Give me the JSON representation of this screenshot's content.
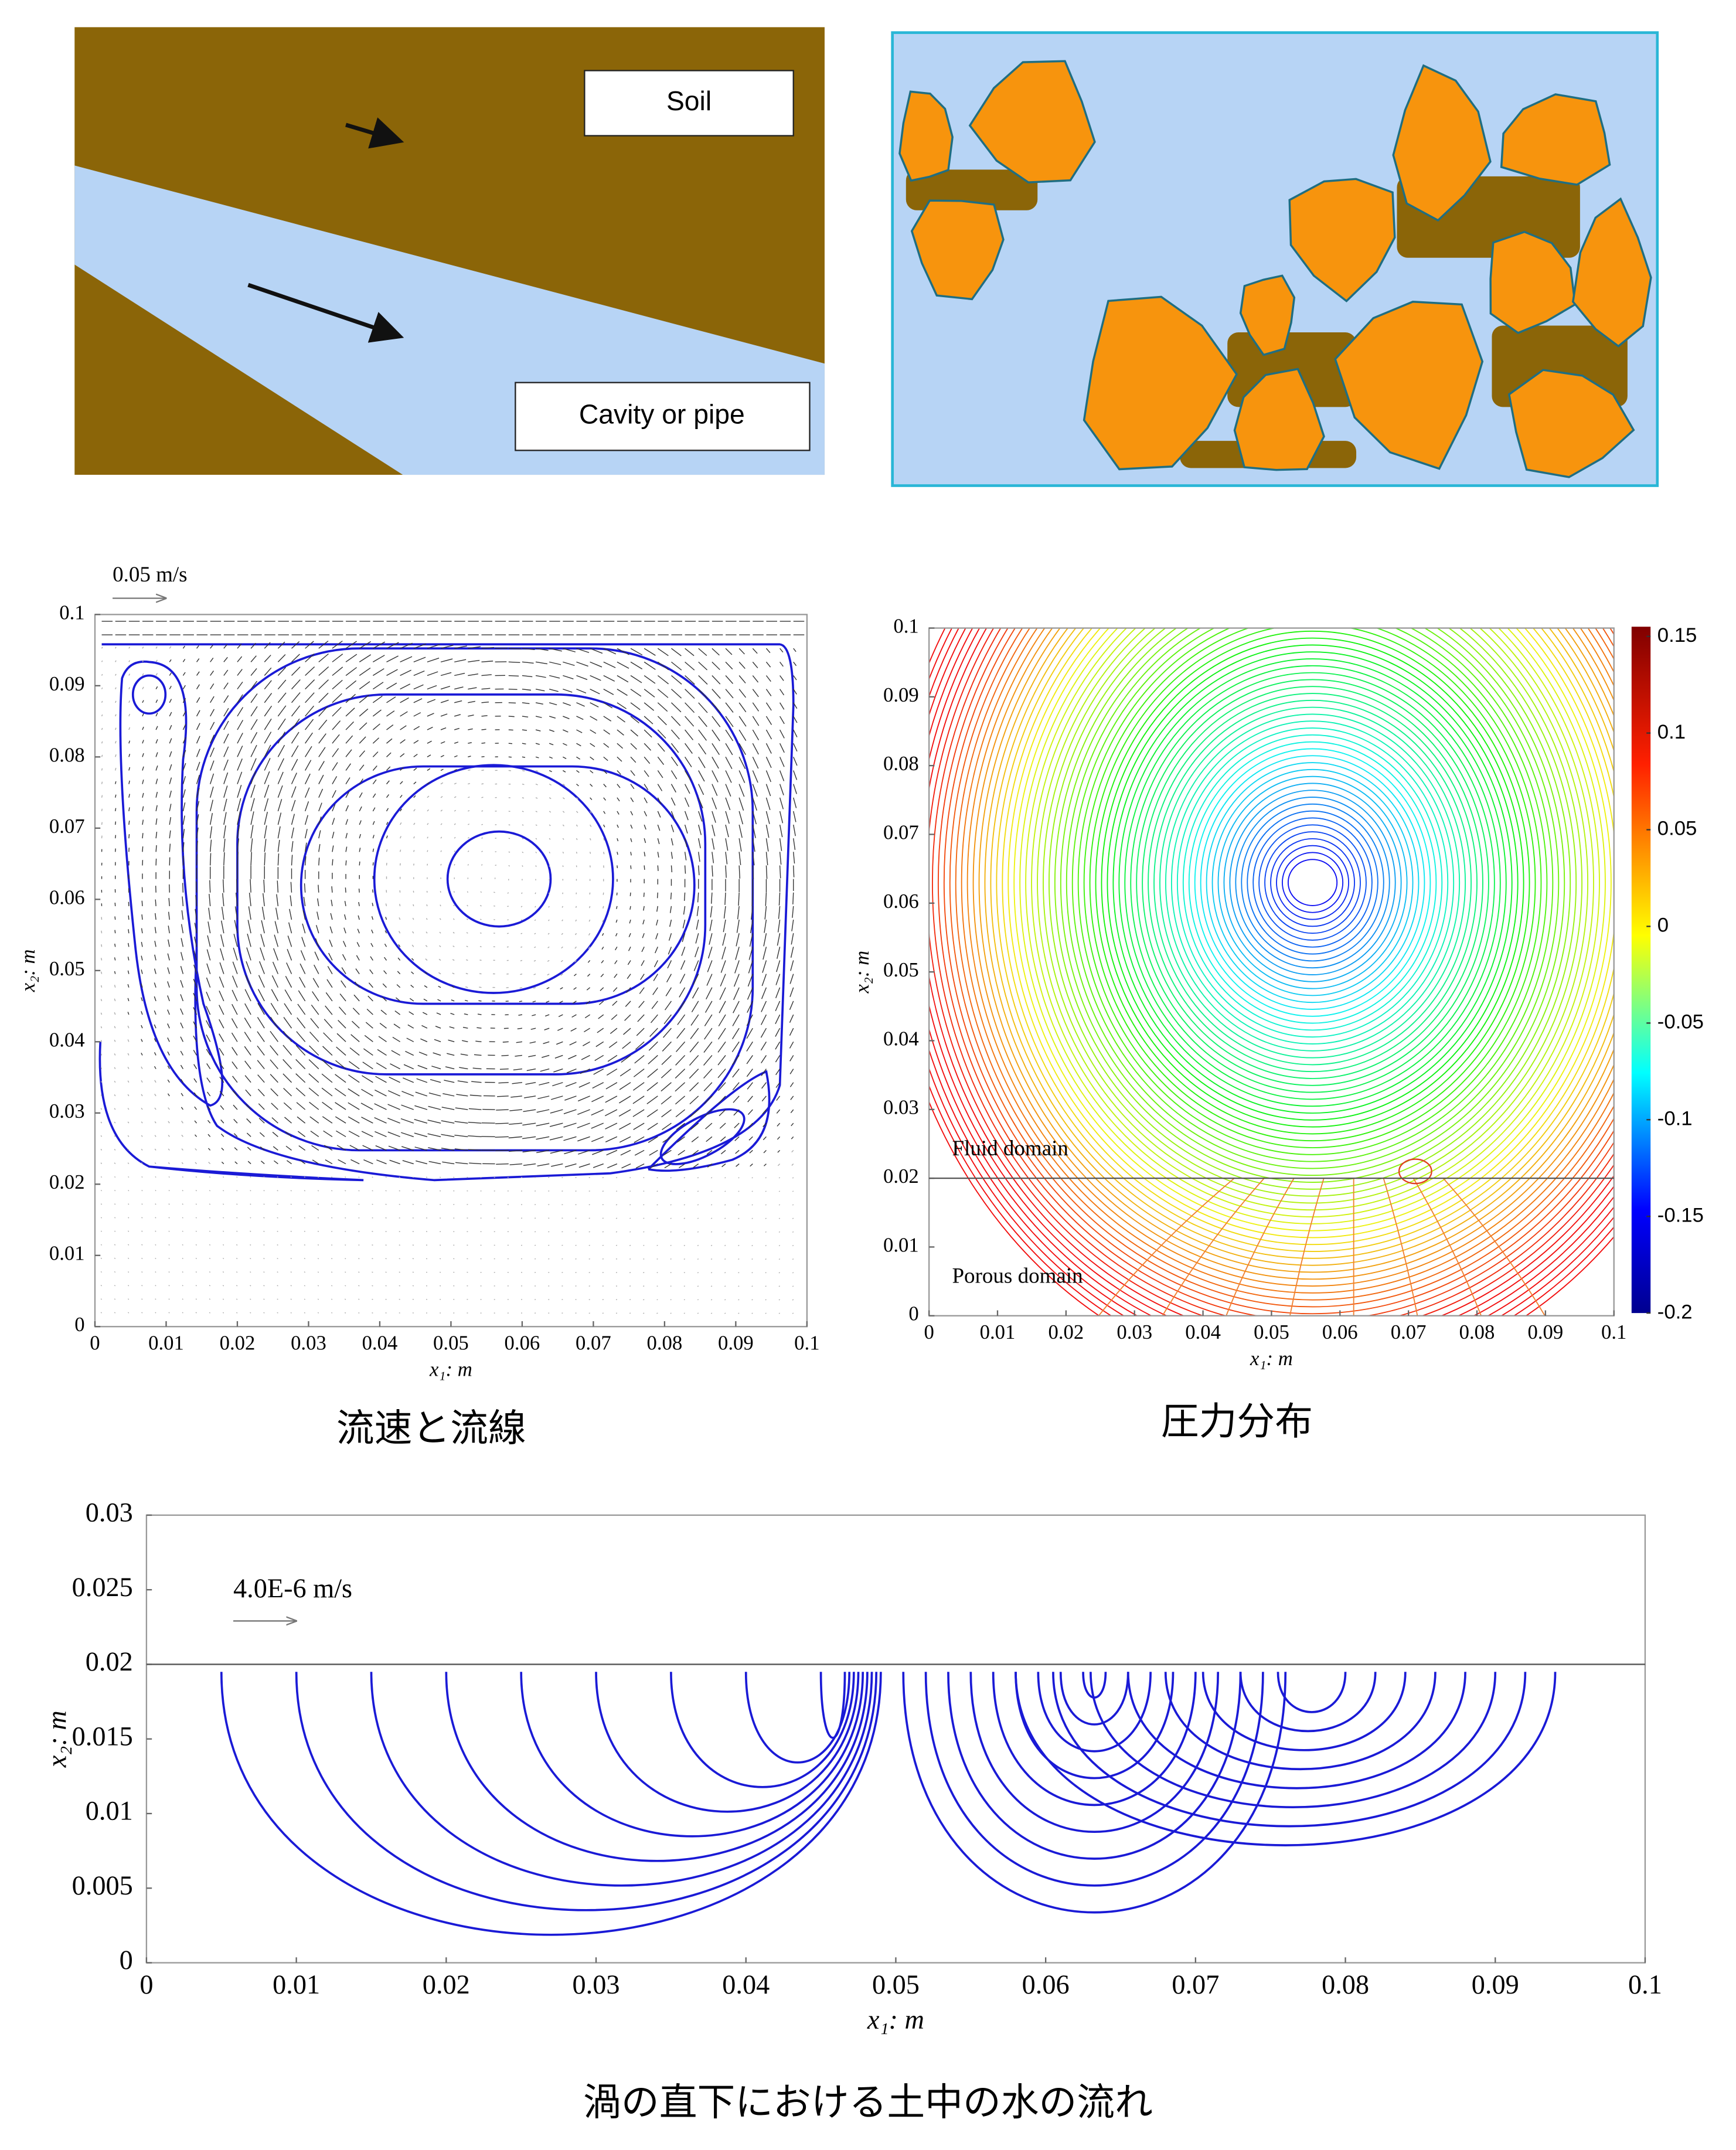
{
  "schematic": {
    "soil_label": "Soil",
    "cavity_label": "Cavity or pipe"
  },
  "velocity_plot": {
    "scale_label": "0.05 m/s",
    "xlim": [
      0,
      0.1
    ],
    "ylim": [
      0,
      0.1
    ],
    "xticks": [
      0,
      0.01,
      0.02,
      0.03,
      0.04,
      0.05,
      0.06,
      0.07,
      0.08,
      0.09,
      0.1
    ],
    "yticks": [
      0,
      0.01,
      0.02,
      0.03,
      0.04,
      0.05,
      0.06,
      0.07,
      0.08,
      0.09,
      0.1
    ],
    "xlabel": "x₁: m",
    "ylabel": "x₂: m",
    "caption": "流速と流線"
  },
  "pressure_plot": {
    "xlim": [
      0,
      0.1
    ],
    "ylim": [
      0,
      0.1
    ],
    "xticks": [
      0,
      0.01,
      0.02,
      0.03,
      0.04,
      0.05,
      0.06,
      0.07,
      0.08,
      0.09,
      0.1
    ],
    "yticks": [
      0,
      0.01,
      0.02,
      0.03,
      0.04,
      0.05,
      0.06,
      0.07,
      0.08,
      0.09,
      0.1
    ],
    "colorbar_lim": [
      -0.2,
      0.155
    ],
    "colorbar_ticks": [
      0.15,
      0.1,
      0.05,
      0,
      -0.05,
      -0.1,
      -0.15,
      -0.2
    ],
    "interface": 0.02,
    "fluid_label": "Fluid domain",
    "porous_label": "Porous domain",
    "xlabel": "x₁: m",
    "ylabel": "x₂: m",
    "caption": "圧力分布"
  },
  "seepage_plot": {
    "scale_label": "4.0E-6 m/s",
    "xlim": [
      0,
      0.1
    ],
    "ylim": [
      0,
      0.03
    ],
    "xticks": [
      0,
      0.01,
      0.02,
      0.03,
      0.04,
      0.05,
      0.06,
      0.07,
      0.08,
      0.09,
      0.1
    ],
    "yticks": [
      0,
      0.005,
      0.01,
      0.015,
      0.02,
      0.025,
      0.03
    ],
    "interface": 0.02,
    "xlabel": "x₁: m",
    "ylabel": "x₂: m",
    "caption": "渦の直下における土中の水の流れ"
  }
}
